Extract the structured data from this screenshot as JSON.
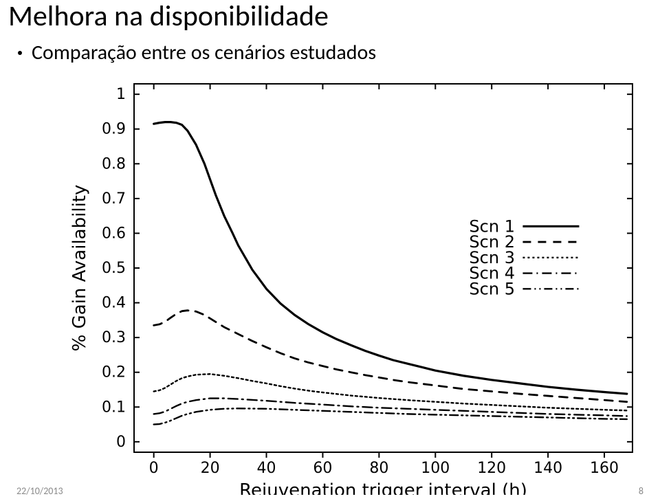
{
  "title": "Melhora na disponibilidade",
  "bullet": "Comparação entre os cenários estudados",
  "footer_date": "22/10/2013",
  "footer_page": "8",
  "chart": {
    "type": "line",
    "background_color": "#ffffff",
    "axis_color": "#000000",
    "axis_linewidth": 2,
    "xlabel": "Rejuvenation trigger interval (h)",
    "ylabel": "% Gain Availability",
    "label_fontsize": 26,
    "tick_fontsize": 22,
    "legend_fontsize": 24,
    "xlim": [
      -7,
      170
    ],
    "ylim": [
      -0.03,
      1.03
    ],
    "xticks": [
      0,
      20,
      40,
      60,
      80,
      100,
      120,
      140,
      160
    ],
    "yticks": [
      0,
      0.1,
      0.2,
      0.3,
      0.4,
      0.5,
      0.6,
      0.7,
      0.8,
      0.9,
      1
    ],
    "legend": {
      "x": 112,
      "y_top": 0.62,
      "line_len": 42,
      "gap": 0.045,
      "items": [
        "Scn 1",
        "Scn 2",
        "Scn 3",
        "Scn 4",
        "Scn 5"
      ]
    },
    "series": [
      {
        "name": "Scn 1",
        "color": "#000000",
        "linewidth": 3.2,
        "dash": "",
        "xs": [
          0,
          2,
          4,
          6,
          8,
          10,
          12,
          15,
          18,
          20,
          22,
          25,
          28,
          30,
          35,
          40,
          45,
          50,
          55,
          60,
          65,
          70,
          75,
          80,
          85,
          90,
          95,
          100,
          110,
          120,
          130,
          140,
          150,
          160,
          168
        ],
        "ys": [
          0.915,
          0.918,
          0.92,
          0.92,
          0.918,
          0.912,
          0.895,
          0.855,
          0.8,
          0.755,
          0.71,
          0.65,
          0.6,
          0.565,
          0.495,
          0.44,
          0.398,
          0.365,
          0.338,
          0.315,
          0.295,
          0.278,
          0.262,
          0.248,
          0.235,
          0.225,
          0.215,
          0.205,
          0.19,
          0.178,
          0.168,
          0.158,
          0.15,
          0.143,
          0.138
        ]
      },
      {
        "name": "Scn 2",
        "color": "#000000",
        "linewidth": 2.8,
        "dash": "12,10",
        "xs": [
          0,
          2,
          4,
          6,
          8,
          10,
          12,
          15,
          18,
          20,
          22,
          25,
          30,
          35,
          40,
          45,
          50,
          55,
          60,
          65,
          70,
          75,
          80,
          85,
          90,
          100,
          110,
          120,
          130,
          140,
          150,
          160,
          168
        ],
        "ys": [
          0.335,
          0.338,
          0.345,
          0.357,
          0.368,
          0.376,
          0.378,
          0.375,
          0.365,
          0.355,
          0.345,
          0.33,
          0.31,
          0.29,
          0.272,
          0.255,
          0.24,
          0.228,
          0.218,
          0.208,
          0.2,
          0.192,
          0.185,
          0.178,
          0.172,
          0.162,
          0.152,
          0.145,
          0.138,
          0.132,
          0.126,
          0.12,
          0.115
        ]
      },
      {
        "name": "Scn 3",
        "color": "#000000",
        "linewidth": 2.4,
        "dash": "3,4",
        "xs": [
          0,
          2,
          4,
          6,
          8,
          10,
          12,
          15,
          20,
          25,
          30,
          35,
          40,
          45,
          50,
          55,
          60,
          70,
          80,
          90,
          100,
          110,
          120,
          130,
          140,
          150,
          160,
          168
        ],
        "ys": [
          0.145,
          0.148,
          0.155,
          0.165,
          0.175,
          0.183,
          0.188,
          0.193,
          0.195,
          0.19,
          0.183,
          0.175,
          0.168,
          0.16,
          0.153,
          0.147,
          0.142,
          0.133,
          0.126,
          0.12,
          0.115,
          0.11,
          0.106,
          0.102,
          0.098,
          0.095,
          0.092,
          0.09
        ]
      },
      {
        "name": "Scn 4",
        "color": "#000000",
        "linewidth": 2.4,
        "dash": "14,6,2,6",
        "xs": [
          0,
          2,
          4,
          6,
          8,
          10,
          12,
          15,
          20,
          25,
          30,
          40,
          50,
          60,
          70,
          80,
          90,
          100,
          110,
          120,
          130,
          140,
          150,
          160,
          168
        ],
        "ys": [
          0.08,
          0.082,
          0.087,
          0.095,
          0.103,
          0.11,
          0.115,
          0.12,
          0.125,
          0.125,
          0.123,
          0.118,
          0.112,
          0.107,
          0.102,
          0.098,
          0.095,
          0.092,
          0.089,
          0.086,
          0.083,
          0.08,
          0.078,
          0.076,
          0.074
        ]
      },
      {
        "name": "Scn 5",
        "color": "#000000",
        "linewidth": 2.4,
        "dash": "12,5,2,5,2,5",
        "xs": [
          0,
          2,
          4,
          6,
          8,
          10,
          12,
          15,
          20,
          25,
          30,
          40,
          50,
          60,
          70,
          80,
          90,
          100,
          110,
          120,
          130,
          140,
          150,
          160,
          168
        ],
        "ys": [
          0.05,
          0.051,
          0.055,
          0.061,
          0.068,
          0.075,
          0.08,
          0.086,
          0.092,
          0.095,
          0.096,
          0.095,
          0.092,
          0.089,
          0.086,
          0.083,
          0.08,
          0.078,
          0.076,
          0.074,
          0.072,
          0.07,
          0.068,
          0.066,
          0.065
        ]
      }
    ]
  }
}
